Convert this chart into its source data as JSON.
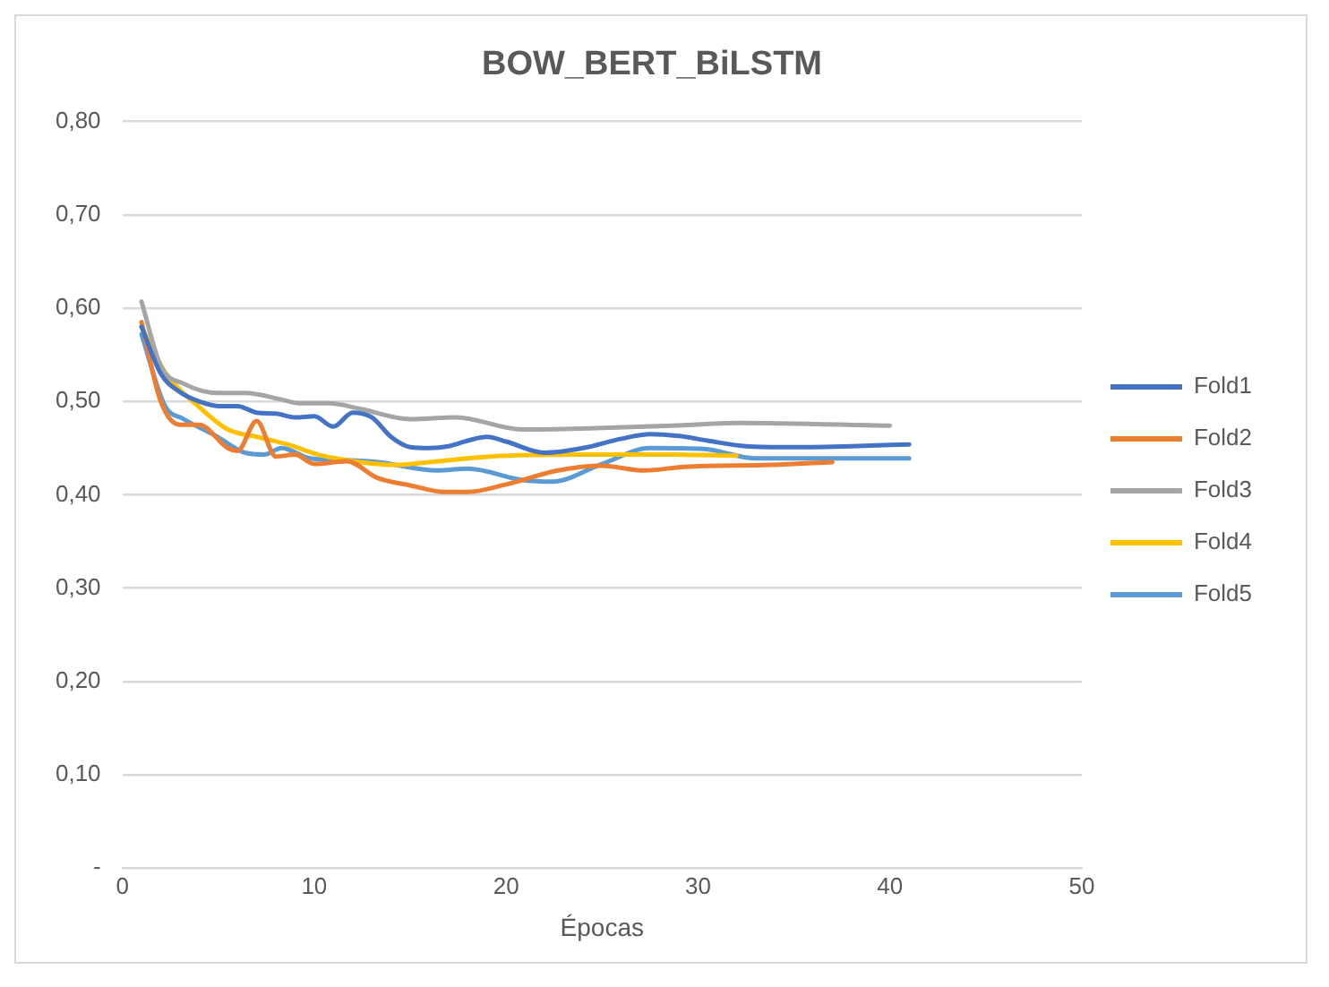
{
  "chart_data": {
    "type": "line",
    "title": "BOW_BERT_BiLSTM",
    "xlabel": "Épocas",
    "xlim": [
      0,
      50
    ],
    "xticks": [
      0,
      10,
      20,
      30,
      40,
      50
    ],
    "ylim": [
      0,
      0.8
    ],
    "yticks": [
      {
        "value": 0,
        "label": "-"
      },
      {
        "value": 0.1,
        "label": "0,10"
      },
      {
        "value": 0.2,
        "label": "0,20"
      },
      {
        "value": 0.3,
        "label": "0,30"
      },
      {
        "value": 0.4,
        "label": "0,40"
      },
      {
        "value": 0.5,
        "label": "0,50"
      },
      {
        "value": 0.6,
        "label": "0,60"
      },
      {
        "value": 0.7,
        "label": "0,70"
      },
      {
        "value": 0.8,
        "label": "0,80"
      }
    ],
    "grid": "y",
    "legend": "right",
    "marker": "none",
    "line_style": "solid",
    "series": [
      {
        "name": "Fold1",
        "color": "#4472c4",
        "x": [
          1,
          2,
          3,
          4,
          5,
          6,
          7,
          8,
          9,
          10,
          11,
          12,
          13,
          14,
          15,
          16,
          17,
          18,
          19,
          20,
          22,
          24,
          26,
          27.5,
          29,
          30.5,
          32.5,
          35,
          38,
          41
        ],
        "values": [
          0.58,
          0.53,
          0.51,
          0.5,
          0.495,
          0.495,
          0.488,
          0.487,
          0.483,
          0.484,
          0.473,
          0.488,
          0.483,
          0.462,
          0.451,
          0.45,
          0.452,
          0.458,
          0.462,
          0.457,
          0.445,
          0.45,
          0.46,
          0.465,
          0.463,
          0.458,
          0.452,
          0.451,
          0.452,
          0.454
        ]
      },
      {
        "name": "Fold2",
        "color": "#ed7d31",
        "x": [
          1,
          2,
          3,
          4,
          5.5,
          6,
          7,
          8,
          9,
          10,
          11.7,
          13.3,
          15,
          16.8,
          18,
          20,
          22.7,
          25,
          27.2,
          29.3,
          33.8,
          37
        ],
        "values": [
          0.585,
          0.5,
          0.475,
          0.475,
          0.45,
          0.447,
          0.479,
          0.441,
          0.443,
          0.433,
          0.436,
          0.418,
          0.41,
          0.403,
          0.403,
          0.411,
          0.426,
          0.431,
          0.426,
          0.43,
          0.432,
          0.435
        ]
      },
      {
        "name": "Fold3",
        "color": "#a5a5a5",
        "x": [
          1,
          2,
          3.2,
          5,
          6.4,
          8.3,
          9.2,
          10.8,
          12.4,
          15,
          17.4,
          20.8,
          24,
          28.7,
          32,
          40
        ],
        "values": [
          0.607,
          0.538,
          0.519,
          0.509,
          0.509,
          0.502,
          0.498,
          0.498,
          0.492,
          0.481,
          0.483,
          0.47,
          0.471,
          0.474,
          0.477,
          0.474
        ]
      },
      {
        "name": "Fold4",
        "color": "#ffc000",
        "x": [
          1,
          2.3,
          3.9,
          5.5,
          7,
          8.6,
          10.2,
          12.4,
          14.2,
          16,
          19.2,
          24,
          28.7,
          32
        ],
        "values": [
          0.58,
          0.529,
          0.496,
          0.47,
          0.462,
          0.454,
          0.443,
          0.435,
          0.432,
          0.435,
          0.441,
          0.443,
          0.443,
          0.442
        ]
      },
      {
        "name": "Fold5",
        "color": "#5b9bd5",
        "x": [
          1,
          2.2,
          3.2,
          4.8,
          6.4,
          7.4,
          8.3,
          9.8,
          11.7,
          13.3,
          16.4,
          18,
          20.8,
          22.4,
          25,
          27.5,
          30.3,
          33,
          41
        ],
        "values": [
          0.572,
          0.496,
          0.481,
          0.464,
          0.445,
          0.443,
          0.45,
          0.439,
          0.437,
          0.435,
          0.426,
          0.428,
          0.416,
          0.414,
          0.433,
          0.45,
          0.449,
          0.439,
          0.439
        ]
      }
    ]
  }
}
